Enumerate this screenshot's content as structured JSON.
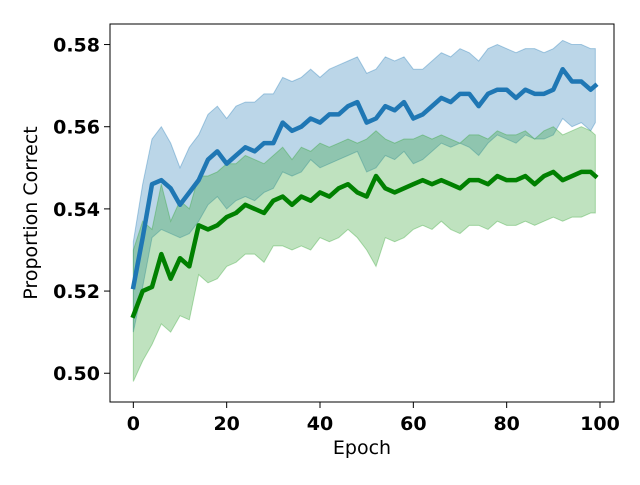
{
  "chart_data": {
    "type": "line",
    "title": "",
    "xlabel": "Epoch",
    "ylabel": "Proportion Correct",
    "xlim": [
      -5,
      103
    ],
    "ylim": [
      0.493,
      0.585
    ],
    "xticks": [
      0,
      20,
      40,
      60,
      80,
      100
    ],
    "xtick_labels": [
      "0",
      "20",
      "40",
      "60",
      "80",
      "100"
    ],
    "yticks": [
      0.5,
      0.52,
      0.54,
      0.56,
      0.58
    ],
    "ytick_labels": [
      "0.50",
      "0.52",
      "0.54",
      "0.56",
      "0.58"
    ],
    "grid": false,
    "legend": "none",
    "series": [
      {
        "color": "#1f77b4",
        "band_color": "#1f77b4",
        "x": [
          0,
          2,
          4,
          6,
          8,
          10,
          12,
          14,
          16,
          18,
          20,
          22,
          24,
          26,
          28,
          30,
          32,
          34,
          36,
          38,
          40,
          42,
          44,
          46,
          48,
          50,
          52,
          54,
          56,
          58,
          60,
          62,
          64,
          66,
          68,
          70,
          72,
          74,
          76,
          78,
          80,
          82,
          84,
          86,
          88,
          90,
          92,
          94,
          96,
          98,
          99
        ],
        "values": [
          0.521,
          0.533,
          0.546,
          0.547,
          0.545,
          0.541,
          0.544,
          0.547,
          0.552,
          0.554,
          0.551,
          0.553,
          0.555,
          0.554,
          0.556,
          0.556,
          0.561,
          0.559,
          0.56,
          0.562,
          0.561,
          0.563,
          0.563,
          0.565,
          0.566,
          0.561,
          0.562,
          0.565,
          0.564,
          0.566,
          0.562,
          0.563,
          0.565,
          0.567,
          0.566,
          0.568,
          0.568,
          0.565,
          0.568,
          0.569,
          0.569,
          0.567,
          0.569,
          0.568,
          0.568,
          0.569,
          0.574,
          0.571,
          0.571,
          0.569,
          0.57
        ],
        "lower": [
          0.51,
          0.521,
          0.533,
          0.535,
          0.534,
          0.533,
          0.534,
          0.537,
          0.541,
          0.543,
          0.54,
          0.542,
          0.543,
          0.542,
          0.544,
          0.545,
          0.549,
          0.548,
          0.549,
          0.552,
          0.55,
          0.551,
          0.552,
          0.553,
          0.554,
          0.549,
          0.55,
          0.553,
          0.552,
          0.554,
          0.551,
          0.552,
          0.554,
          0.556,
          0.555,
          0.556,
          0.555,
          0.553,
          0.556,
          0.558,
          0.557,
          0.556,
          0.558,
          0.557,
          0.557,
          0.558,
          0.562,
          0.56,
          0.561,
          0.559,
          0.561
        ],
        "upper": [
          0.532,
          0.546,
          0.557,
          0.56,
          0.556,
          0.55,
          0.555,
          0.558,
          0.563,
          0.565,
          0.562,
          0.565,
          0.566,
          0.566,
          0.568,
          0.568,
          0.572,
          0.571,
          0.572,
          0.574,
          0.572,
          0.574,
          0.575,
          0.576,
          0.577,
          0.573,
          0.574,
          0.577,
          0.576,
          0.577,
          0.574,
          0.574,
          0.576,
          0.578,
          0.577,
          0.579,
          0.578,
          0.576,
          0.579,
          0.58,
          0.579,
          0.578,
          0.579,
          0.579,
          0.578,
          0.579,
          0.581,
          0.58,
          0.58,
          0.579,
          0.579
        ]
      },
      {
        "color": "#008000",
        "band_color": "#2ca02c",
        "x": [
          0,
          2,
          4,
          6,
          8,
          10,
          12,
          14,
          16,
          18,
          20,
          22,
          24,
          26,
          28,
          30,
          32,
          34,
          36,
          38,
          40,
          42,
          44,
          46,
          48,
          50,
          52,
          54,
          56,
          58,
          60,
          62,
          64,
          66,
          68,
          70,
          72,
          74,
          76,
          78,
          80,
          82,
          84,
          86,
          88,
          90,
          92,
          94,
          96,
          98,
          99
        ],
        "values": [
          0.514,
          0.52,
          0.521,
          0.529,
          0.523,
          0.528,
          0.526,
          0.536,
          0.535,
          0.536,
          0.538,
          0.539,
          0.541,
          0.54,
          0.539,
          0.542,
          0.543,
          0.541,
          0.543,
          0.542,
          0.544,
          0.543,
          0.545,
          0.546,
          0.544,
          0.543,
          0.548,
          0.545,
          0.544,
          0.545,
          0.546,
          0.547,
          0.546,
          0.547,
          0.546,
          0.545,
          0.547,
          0.547,
          0.546,
          0.548,
          0.547,
          0.547,
          0.548,
          0.546,
          0.548,
          0.549,
          0.547,
          0.548,
          0.549,
          0.549,
          0.548
        ],
        "lower": [
          0.498,
          0.503,
          0.507,
          0.512,
          0.51,
          0.514,
          0.513,
          0.524,
          0.522,
          0.523,
          0.526,
          0.527,
          0.529,
          0.529,
          0.527,
          0.531,
          0.531,
          0.53,
          0.531,
          0.53,
          0.533,
          0.532,
          0.533,
          0.535,
          0.533,
          0.53,
          0.526,
          0.533,
          0.532,
          0.533,
          0.535,
          0.536,
          0.535,
          0.537,
          0.535,
          0.534,
          0.536,
          0.536,
          0.535,
          0.537,
          0.536,
          0.536,
          0.537,
          0.536,
          0.537,
          0.538,
          0.537,
          0.538,
          0.538,
          0.539,
          0.539
        ],
        "upper": [
          0.53,
          0.537,
          0.535,
          0.546,
          0.537,
          0.542,
          0.54,
          0.548,
          0.548,
          0.549,
          0.551,
          0.551,
          0.553,
          0.552,
          0.551,
          0.553,
          0.555,
          0.552,
          0.555,
          0.554,
          0.556,
          0.555,
          0.556,
          0.557,
          0.556,
          0.557,
          0.559,
          0.557,
          0.556,
          0.557,
          0.557,
          0.558,
          0.557,
          0.558,
          0.557,
          0.556,
          0.558,
          0.558,
          0.557,
          0.559,
          0.558,
          0.558,
          0.559,
          0.557,
          0.559,
          0.56,
          0.558,
          0.559,
          0.56,
          0.559,
          0.558
        ]
      }
    ]
  }
}
